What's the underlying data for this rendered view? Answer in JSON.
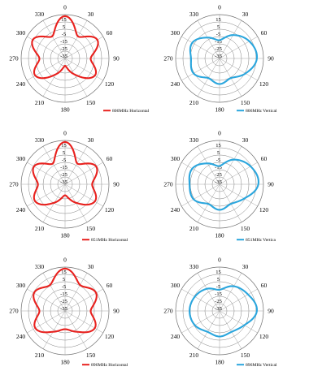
{
  "colors": {
    "horizontal": "#e8211e",
    "vertical": "#2ba6dd",
    "grid": "#808080"
  },
  "chart_data": [
    {
      "type": "polar",
      "legend": "bottom-right",
      "grid": true,
      "radial_ticks": [
        "15",
        "5",
        "-5",
        "-15",
        "-25",
        "-35"
      ],
      "rlim": [
        -45,
        15
      ],
      "angle_ticks": [
        "0",
        "30",
        "60",
        "90",
        "120",
        "150",
        "180",
        "210",
        "240",
        "270",
        "300",
        "330"
      ],
      "series": [
        {
          "name": "806MHz Horizontal",
          "color": "#e8211e",
          "theta": [
            0,
            30,
            60,
            90,
            120,
            150,
            180,
            210,
            240,
            270,
            300,
            330
          ],
          "r": [
            13,
            -10,
            6,
            -10,
            2,
            -20,
            -35,
            -20,
            2,
            -10,
            6,
            -10
          ]
        }
      ]
    },
    {
      "type": "polar",
      "legend": "bottom-right",
      "grid": true,
      "radial_ticks": [
        "15",
        "5",
        "-5",
        "-15",
        "-25",
        "-35"
      ],
      "rlim": [
        -45,
        15
      ],
      "angle_ticks": [
        "0",
        "30",
        "60",
        "90",
        "120",
        "150",
        "180",
        "210",
        "240",
        "270",
        "300",
        "330"
      ],
      "series": [
        {
          "name": "806MHz Vertical",
          "color": "#2ba6dd",
          "theta": [
            0,
            30,
            60,
            90,
            120,
            150,
            180,
            210,
            240,
            270,
            300,
            330
          ],
          "r": [
            -20,
            -8,
            2,
            6,
            -4,
            -14,
            -10,
            -14,
            -4,
            -6,
            -2,
            -12
          ]
        }
      ]
    },
    {
      "type": "polar",
      "legend": "bottom-right",
      "grid": true,
      "radial_ticks": [
        "15",
        "5",
        "-5",
        "-15",
        "-25",
        "-35"
      ],
      "rlim": [
        -45,
        15
      ],
      "angle_ticks": [
        "0",
        "30",
        "60",
        "90",
        "120",
        "150",
        "180",
        "210",
        "240",
        "270",
        "300",
        "330"
      ],
      "series": [
        {
          "name": "851MHz Horizontal",
          "color": "#e8211e",
          "theta": [
            0,
            30,
            60,
            90,
            120,
            150,
            180,
            210,
            240,
            270,
            300,
            330
          ],
          "r": [
            13,
            -12,
            4,
            -8,
            2,
            -16,
            -30,
            -16,
            2,
            -8,
            4,
            -12
          ]
        }
      ]
    },
    {
      "type": "polar",
      "legend": "bottom-right",
      "grid": true,
      "radial_ticks": [
        "15",
        "5",
        "-5",
        "-15",
        "-25",
        "-35"
      ],
      "rlim": [
        -45,
        15
      ],
      "angle_ticks": [
        "0",
        "30",
        "60",
        "90",
        "120",
        "150",
        "180",
        "210",
        "240",
        "270",
        "300",
        "330"
      ],
      "series": [
        {
          "name": "851MHz Vertica",
          "color": "#2ba6dd",
          "theta": [
            0,
            30,
            60,
            90,
            120,
            150,
            180,
            210,
            240,
            270,
            300,
            330
          ],
          "r": [
            -20,
            -6,
            4,
            8,
            -6,
            -14,
            -10,
            -14,
            -4,
            -4,
            -2,
            -12
          ]
        }
      ]
    },
    {
      "type": "polar",
      "legend": "bottom-right",
      "grid": true,
      "radial_ticks": [
        "15",
        "5",
        "-5",
        "-15",
        "-25",
        "-35"
      ],
      "rlim": [
        -45,
        15
      ],
      "angle_ticks": [
        "0",
        "30",
        "60",
        "90",
        "120",
        "150",
        "180",
        "210",
        "240",
        "270",
        "300",
        "330"
      ],
      "series": [
        {
          "name": "896MHz Horizontal",
          "color": "#e8211e",
          "theta": [
            0,
            30,
            60,
            90,
            120,
            150,
            180,
            210,
            240,
            270,
            300,
            330
          ],
          "r": [
            13,
            -4,
            4,
            -10,
            2,
            -12,
            -20,
            -12,
            2,
            -10,
            4,
            -4
          ]
        }
      ]
    },
    {
      "type": "polar",
      "legend": "bottom-right",
      "grid": true,
      "radial_ticks": [
        "15",
        "5",
        "-5",
        "-15",
        "-25",
        "-35"
      ],
      "rlim": [
        -45,
        15
      ],
      "angle_ticks": [
        "0",
        "30",
        "60",
        "90",
        "120",
        "150",
        "180",
        "210",
        "240",
        "270",
        "300",
        "330"
      ],
      "series": [
        {
          "name": "896MHz Vertical",
          "color": "#2ba6dd",
          "theta": [
            0,
            30,
            60,
            90,
            120,
            150,
            180,
            210,
            240,
            270,
            300,
            330
          ],
          "r": [
            -16,
            -6,
            0,
            6,
            -6,
            -12,
            -10,
            -12,
            -6,
            -4,
            -6,
            -10
          ]
        }
      ]
    }
  ]
}
